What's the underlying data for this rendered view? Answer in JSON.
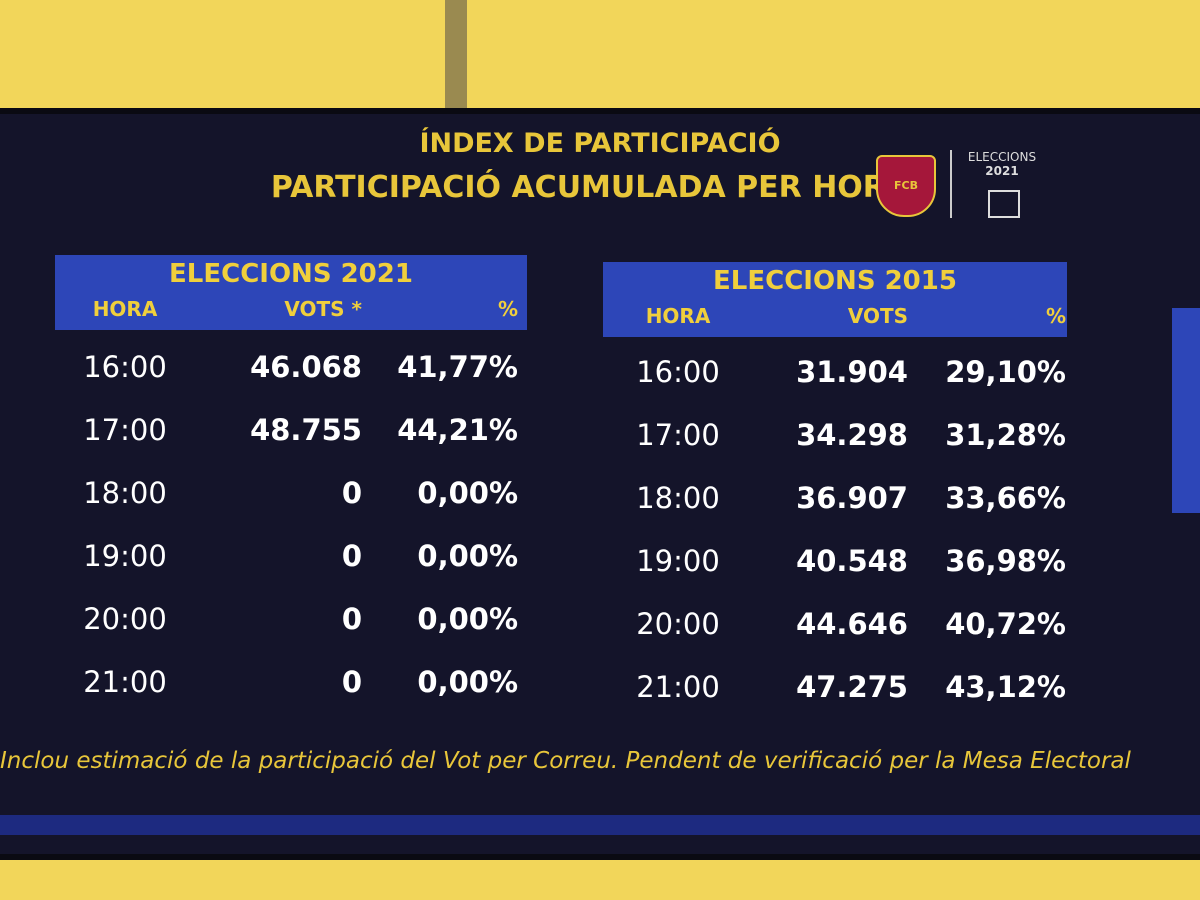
{
  "header": {
    "title": "ÍNDEX DE PARTICIPACIÓ",
    "subtitle": "PARTICIPACIÓ ACUMULADA PER HORA",
    "crest_text": "FCB",
    "badge_title": "ELECCIONS",
    "badge_year": "2021"
  },
  "tables": [
    {
      "title": "ELECCIONS 2021",
      "columns": [
        "HORA",
        "VOTS *",
        "%"
      ],
      "rows": [
        [
          "16:00",
          "46.068",
          "41,77%"
        ],
        [
          "17:00",
          "48.755",
          "44,21%"
        ],
        [
          "18:00",
          "0",
          "0,00%"
        ],
        [
          "19:00",
          "0",
          "0,00%"
        ],
        [
          "20:00",
          "0",
          "0,00%"
        ],
        [
          "21:00",
          "0",
          "0,00%"
        ]
      ]
    },
    {
      "title": "ELECCIONS 2015",
      "columns": [
        "HORA",
        "VOTS",
        "%"
      ],
      "rows": [
        [
          "16:00",
          "31.904",
          "29,10%"
        ],
        [
          "17:00",
          "34.298",
          "31,28%"
        ],
        [
          "18:00",
          "36.907",
          "33,66%"
        ],
        [
          "19:00",
          "40.548",
          "36,98%"
        ],
        [
          "20:00",
          "44.646",
          "40,72%"
        ],
        [
          "21:00",
          "47.275",
          "43,12%"
        ]
      ]
    }
  ],
  "footnote": "Inclou  estimació de la participació del Vot per Correu. Pendent de verificació per la Mesa Electoral"
}
